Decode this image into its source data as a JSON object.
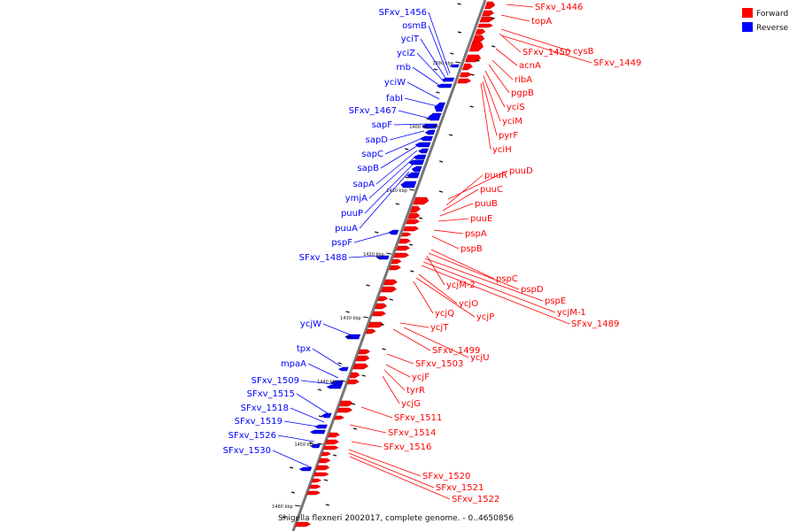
{
  "caption": "Shigella flexneri 2002017, complete genome. - 0..4650856",
  "colors": {
    "forward": "#ff0000",
    "reverse": "#0000ff",
    "axis": "#777777"
  },
  "legend": {
    "forward": "Forward",
    "reverse": "Reverse",
    "placement": "top-right"
  },
  "ticks": [
    "1390 kbp",
    "1400 kbp",
    "1410 kbp",
    "1420 kbp",
    "1430 kbp",
    "1440 kbp",
    "1450 kbp",
    "1460 kbp"
  ],
  "forward_labels": [
    "SFxv_1446",
    "topA",
    "cysB",
    "SFxv_1450",
    "SFxv_1449",
    "acnA",
    "ribA",
    "pgpB",
    "yciS",
    "yciM",
    "pyrF",
    "yciH",
    "puuD",
    "puuR",
    "puuC",
    "puuB",
    "puuE",
    "pspA",
    "pspB",
    "pspC",
    "pspD",
    "ycjM-2",
    "pspE",
    "ycjM-1",
    "ycjO",
    "SFxv_1489",
    "ycjQ",
    "ycjP",
    "ycjT",
    "SFxv_1499",
    "ycjU",
    "SFxv_1503",
    "ycjF",
    "tyrR",
    "ycjG",
    "SFxv_1511",
    "SFxv_1514",
    "SFxv_1516",
    "SFxv_1520",
    "SFxv_1521",
    "SFxv_1522"
  ],
  "reverse_labels": [
    "SFxv_1456",
    "osmB",
    "yciT",
    "yciZ",
    "rnb",
    "yciW",
    "fabI",
    "SFxv_1467",
    "sapF",
    "sapD",
    "sapC",
    "sapB",
    "sapA",
    "ymjA",
    "puuP",
    "puuA",
    "pspF",
    "SFxv_1488",
    "ycjW",
    "tpx",
    "mpaA",
    "SFxv_1509",
    "SFxv_1515",
    "SFxv_1518",
    "SFxv_1519",
    "SFxv_1526",
    "SFxv_1530"
  ]
}
